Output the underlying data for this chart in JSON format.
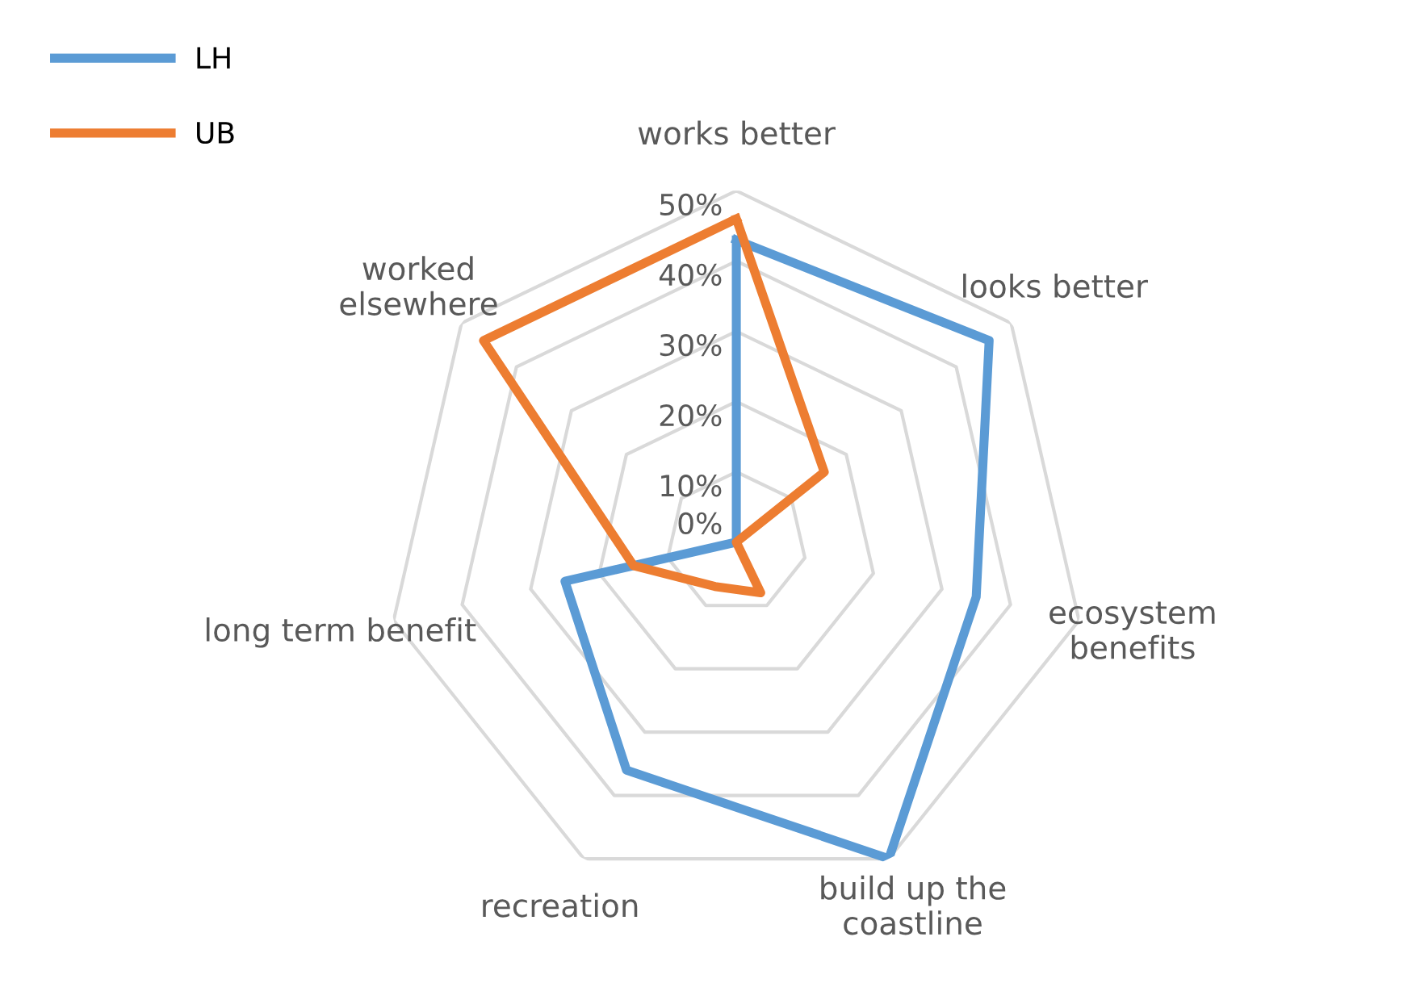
{
  "chart_data": {
    "type": "radar",
    "categories": [
      "works better",
      "looks better",
      "ecosystem\nbenefits",
      "build up the\ncoastline",
      "recreation",
      "long term benefit",
      "worked\nelsewhere"
    ],
    "series": [
      {
        "name": "LH",
        "color": "#5b9bd5",
        "values": [
          43,
          46,
          35,
          50,
          36,
          25,
          0
        ]
      },
      {
        "name": "UB",
        "color": "#ed7d31",
        "values": [
          46,
          16,
          0,
          8,
          7,
          15,
          46
        ]
      }
    ],
    "ylim": [
      0,
      50
    ],
    "yticks": [
      {
        "value": 0,
        "label": "0%"
      },
      {
        "value": 10,
        "label": "10%"
      },
      {
        "value": 20,
        "label": "20%"
      },
      {
        "value": 30,
        "label": "30%"
      },
      {
        "value": 40,
        "label": "40%"
      },
      {
        "value": 50,
        "label": "50%"
      }
    ],
    "grid": true,
    "legend": "top left",
    "marker": "none",
    "line_style": "solid"
  }
}
